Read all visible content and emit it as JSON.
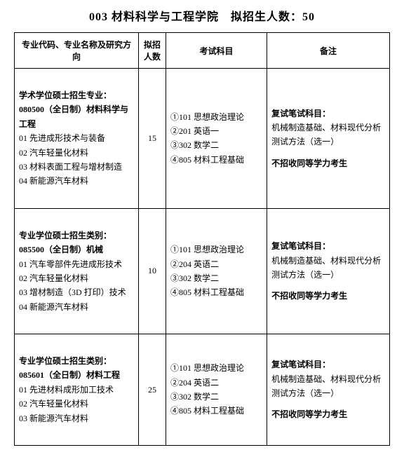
{
  "title": "003 材料科学与工程学院　拟招生人数：50",
  "headers": {
    "major": "专业代码、专业名称及研究方向",
    "count": "拟招人数",
    "exam": "考试科目",
    "note": "备注"
  },
  "rows": [
    {
      "major_header1": "学术学位硕士招生专业：",
      "major_header2": "080500（全日制）材料科学与工程",
      "major_items": [
        "01 先进成形技术与装备",
        "02 汽车轻量化材料",
        "03 材料表面工程与增材制造",
        "04 新能源汽车材料"
      ],
      "count": "15",
      "exam_items": [
        "①101 思想政治理论",
        "②201 英语一",
        "③302 数学二",
        "④805 材料工程基础"
      ],
      "note_title": "复试笔试科目：",
      "note_body": "机械制造基础、材料现代分析测试方法（选一）",
      "note_reject": "不招收同等学力考生"
    },
    {
      "major_header1": "专业学位硕士招生类别：",
      "major_header2": "085500（全日制）机械",
      "major_items": [
        "01 汽车零部件先进成形技术",
        "02 汽车轻量化材料",
        "03 增材制造（3D 打印）技术",
        "04 新能源汽车材料"
      ],
      "count": "10",
      "exam_items": [
        "①101 思想政治理论",
        "②204 英语二",
        "③302 数学二",
        "④805 材料工程基础"
      ],
      "note_title": "复试笔试科目：",
      "note_body": "机械制造基础、材料现代分析测试方法（选一）",
      "note_reject": "不招收同等学力考生"
    },
    {
      "major_header1": "专业学位硕士招生类别：",
      "major_header2": "085601（全日制）材料工程",
      "major_items": [
        "01 先进材料成形加工技术",
        "02 汽车轻量化材料",
        "03 新能源汽车材料"
      ],
      "count": "25",
      "exam_items": [
        "①101 思想政治理论",
        "②204 英语二",
        "③302 数学二",
        "④805 材料工程基础"
      ],
      "note_title": "复试笔试科目：",
      "note_body": "机械制造基础、材料现代分析测试方法（选一）",
      "note_reject": "不招收同等学力考生"
    }
  ]
}
